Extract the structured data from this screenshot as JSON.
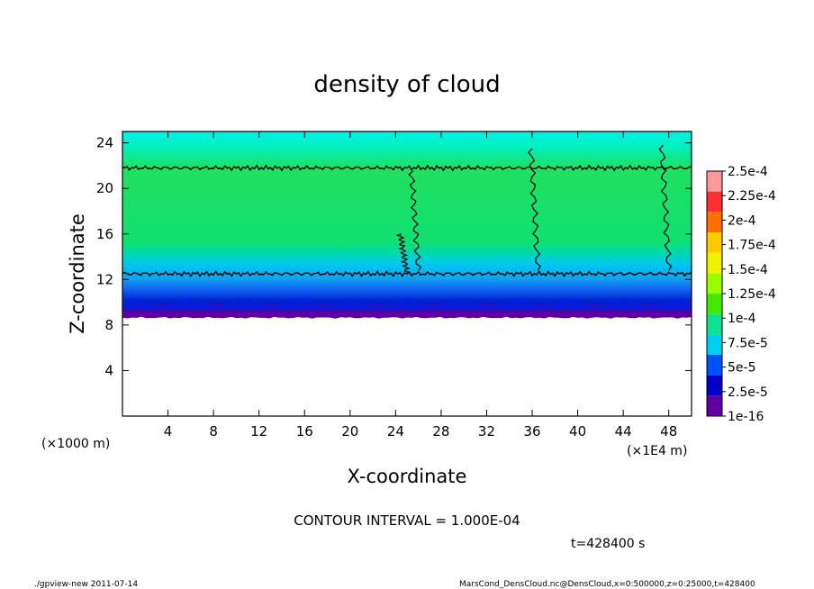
{
  "chart_data": {
    "type": "heatmap",
    "title": "density of cloud",
    "xlabel": "X-coordinate",
    "ylabel": "Z-coordinate",
    "x_unit_left": "(×1000 m)",
    "x_unit_right": "(×1E4 m)",
    "xlim": [
      0,
      50
    ],
    "ylim": [
      0,
      25
    ],
    "x_ticks": [
      "4",
      "8",
      "12",
      "16",
      "20",
      "24",
      "28",
      "32",
      "36",
      "40",
      "44",
      "48"
    ],
    "y_ticks": [
      "4",
      "8",
      "12",
      "16",
      "20",
      "24"
    ],
    "contour_interval": "CONTOUR INTERVAL = 1.000E-04",
    "time_label": "t=428400 s",
    "colorbar": {
      "labels": [
        "2.5e-4",
        "2.25e-4",
        "2e-4",
        "1.75e-4",
        "1.5e-4",
        "1.25e-4",
        "1e-4",
        "7.5e-5",
        "5e-5",
        "2.5e-5",
        "1e-16"
      ],
      "colors": [
        "#ff9999",
        "#ff3030",
        "#ff7000",
        "#ffcc00",
        "#f0f000",
        "#99ff00",
        "#44e800",
        "#10e090",
        "#00d0f0",
        "#0050ff",
        "#0000c8",
        "#6000a0"
      ]
    },
    "profile": [
      {
        "z": 8.8,
        "level": "1e-16"
      },
      {
        "z": 9.3,
        "level": "2.5e-5"
      },
      {
        "z": 10.0,
        "level": "5e-5"
      },
      {
        "z": 11.2,
        "level": "7.5e-5"
      },
      {
        "z": 12.5,
        "level": "1e-4"
      },
      {
        "z": 22.0,
        "level": "1e-4"
      },
      {
        "z": 24.5,
        "level": "7.5e-5"
      }
    ],
    "contour_z": [
      12.5,
      21.8
    ],
    "cloud_base_z": 8.8
  },
  "footer": {
    "left": "./gpview-new  2011-07-14",
    "right": "MarsCond_DensCloud.nc@DensCloud,x=0:500000,z=0:25000,t=428400"
  }
}
